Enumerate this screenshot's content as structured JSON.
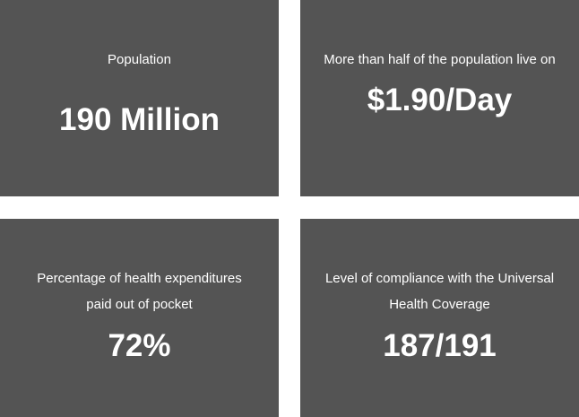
{
  "stats": [
    {
      "label": "Population",
      "value": "190 Million"
    },
    {
      "label": "More than half of the population live on",
      "value": "$1.90/Day"
    },
    {
      "label": "Percentage of health expenditures paid out of pocket",
      "value": "72%"
    },
    {
      "label": "Level of compliance with the Universal Health Coverage",
      "value": "187/191"
    }
  ],
  "colors": {
    "card_background": "#545454",
    "text": "#ffffff",
    "page_background": "#ffffff"
  }
}
